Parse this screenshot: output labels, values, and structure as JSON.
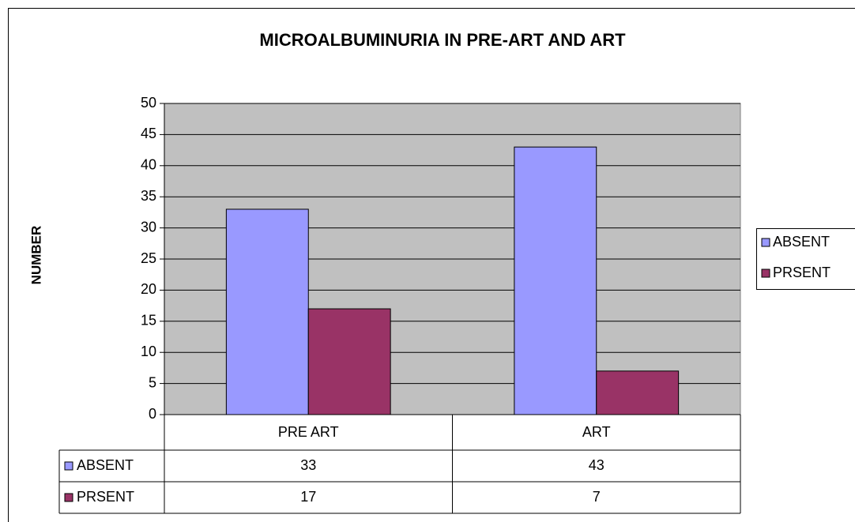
{
  "chart_data": {
    "type": "bar",
    "title": "MICROALBUMINURIA IN PRE-ART AND ART",
    "y_label": "NUMBER",
    "categories": [
      "PRE ART",
      "ART"
    ],
    "series": [
      {
        "name": "ABSENT",
        "color": "#9999ff",
        "values": [
          33,
          43
        ]
      },
      {
        "name": "PRSENT",
        "color": "#993366",
        "values": [
          17,
          7
        ]
      }
    ],
    "ylim": [
      0,
      50
    ],
    "yticks": [
      0,
      5,
      10,
      15,
      20,
      25,
      30,
      35,
      40,
      45,
      50
    ],
    "grid": true,
    "legend": "right",
    "plot_background": "#c0c0c0",
    "data_table": true
  }
}
